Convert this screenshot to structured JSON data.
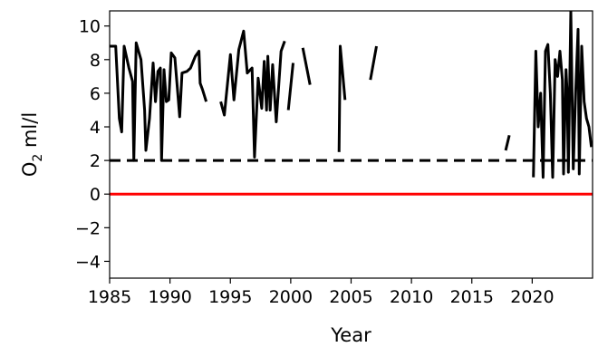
{
  "chart_data": {
    "type": "line",
    "xlabel": "Year",
    "ylabel_main": "O",
    "ylabel_sub": "2",
    "ylabel_rest": " ml/l",
    "xlim": [
      1985,
      2025
    ],
    "ylim": [
      -5,
      10.9
    ],
    "xticks": [
      1985,
      1990,
      1995,
      2000,
      2005,
      2010,
      2015,
      2020
    ],
    "yticks": [
      -4,
      -2,
      0,
      2,
      4,
      6,
      8,
      10
    ],
    "grid": false,
    "colors": {
      "series": "#000000",
      "threshold": "#000000",
      "zero": "#ff0000"
    },
    "reference_lines": [
      {
        "y": 2,
        "style": "dashed",
        "color": "#000000"
      },
      {
        "y": 0,
        "style": "solid",
        "color": "#ff0000"
      }
    ],
    "series": [
      {
        "segments": [
          [
            [
              1985.0,
              8.8
            ],
            [
              1985.5,
              8.8
            ],
            [
              1985.8,
              4.5
            ],
            [
              1986.0,
              3.7
            ],
            [
              1986.2,
              8.8
            ],
            [
              1986.6,
              7.5
            ],
            [
              1986.9,
              6.7
            ],
            [
              1987.0,
              2.0
            ],
            [
              1987.2,
              9.0
            ],
            [
              1987.6,
              8.0
            ],
            [
              1987.9,
              5.0
            ],
            [
              1988.0,
              2.6
            ],
            [
              1988.3,
              4.5
            ],
            [
              1988.6,
              7.8
            ],
            [
              1988.8,
              5.5
            ],
            [
              1989.0,
              7.3
            ],
            [
              1989.2,
              7.5
            ],
            [
              1989.3,
              2.0
            ],
            [
              1989.5,
              7.4
            ],
            [
              1989.7,
              5.5
            ],
            [
              1989.9,
              5.6
            ],
            [
              1990.1,
              8.4
            ],
            [
              1990.4,
              8.1
            ],
            [
              1990.6,
              6.4
            ],
            [
              1990.8,
              4.6
            ],
            [
              1991.0,
              7.2
            ],
            [
              1991.4,
              7.3
            ],
            [
              1991.7,
              7.5
            ],
            [
              1992.1,
              8.2
            ],
            [
              1992.4,
              8.5
            ],
            [
              1992.5,
              6.6
            ],
            [
              1992.7,
              6.2
            ],
            [
              1993.0,
              5.5
            ]
          ],
          [
            [
              1994.2,
              5.5
            ],
            [
              1994.5,
              4.7
            ],
            [
              1995.0,
              8.3
            ],
            [
              1995.3,
              5.6
            ],
            [
              1995.7,
              8.6
            ],
            [
              1996.1,
              9.7
            ],
            [
              1996.4,
              7.2
            ],
            [
              1996.8,
              7.5
            ],
            [
              1997.0,
              2.2
            ],
            [
              1997.3,
              6.9
            ],
            [
              1997.6,
              5.1
            ],
            [
              1997.8,
              7.9
            ],
            [
              1998.0,
              5.0
            ],
            [
              1998.1,
              8.2
            ],
            [
              1998.3,
              5.0
            ],
            [
              1998.5,
              7.7
            ],
            [
              1998.8,
              4.3
            ],
            [
              1999.2,
              8.5
            ],
            [
              1999.5,
              9.1
            ]
          ],
          [
            [
              1999.8,
              5.0
            ],
            [
              2000.2,
              7.8
            ]
          ],
          [
            [
              2001.0,
              8.7
            ],
            [
              2001.6,
              6.5
            ]
          ],
          [
            [
              2004.0,
              2.5
            ],
            [
              2004.1,
              8.8
            ],
            [
              2004.5,
              5.6
            ]
          ],
          [
            [
              2006.6,
              6.8
            ],
            [
              2007.1,
              8.8
            ]
          ],
          [
            [
              2017.8,
              2.6
            ],
            [
              2018.1,
              3.5
            ]
          ],
          [
            [
              2020.1,
              1.0
            ],
            [
              2020.3,
              8.5
            ],
            [
              2020.5,
              4.0
            ],
            [
              2020.7,
              6.0
            ],
            [
              2020.9,
              1.0
            ],
            [
              2021.1,
              8.5
            ],
            [
              2021.3,
              8.9
            ],
            [
              2021.5,
              6.0
            ],
            [
              2021.7,
              1.0
            ],
            [
              2021.9,
              8.0
            ],
            [
              2022.1,
              7.0
            ],
            [
              2022.3,
              8.5
            ],
            [
              2022.5,
              6.8
            ],
            [
              2022.6,
              1.2
            ],
            [
              2022.8,
              7.4
            ],
            [
              2022.9,
              6.0
            ],
            [
              2023.0,
              1.3
            ],
            [
              2023.2,
              10.9
            ],
            [
              2023.4,
              1.5
            ],
            [
              2023.6,
              6.0
            ],
            [
              2023.8,
              9.8
            ],
            [
              2023.9,
              1.2
            ],
            [
              2024.1,
              8.8
            ],
            [
              2024.3,
              5.5
            ],
            [
              2024.5,
              4.5
            ],
            [
              2024.7,
              4.0
            ],
            [
              2024.9,
              2.8
            ]
          ]
        ]
      }
    ]
  }
}
